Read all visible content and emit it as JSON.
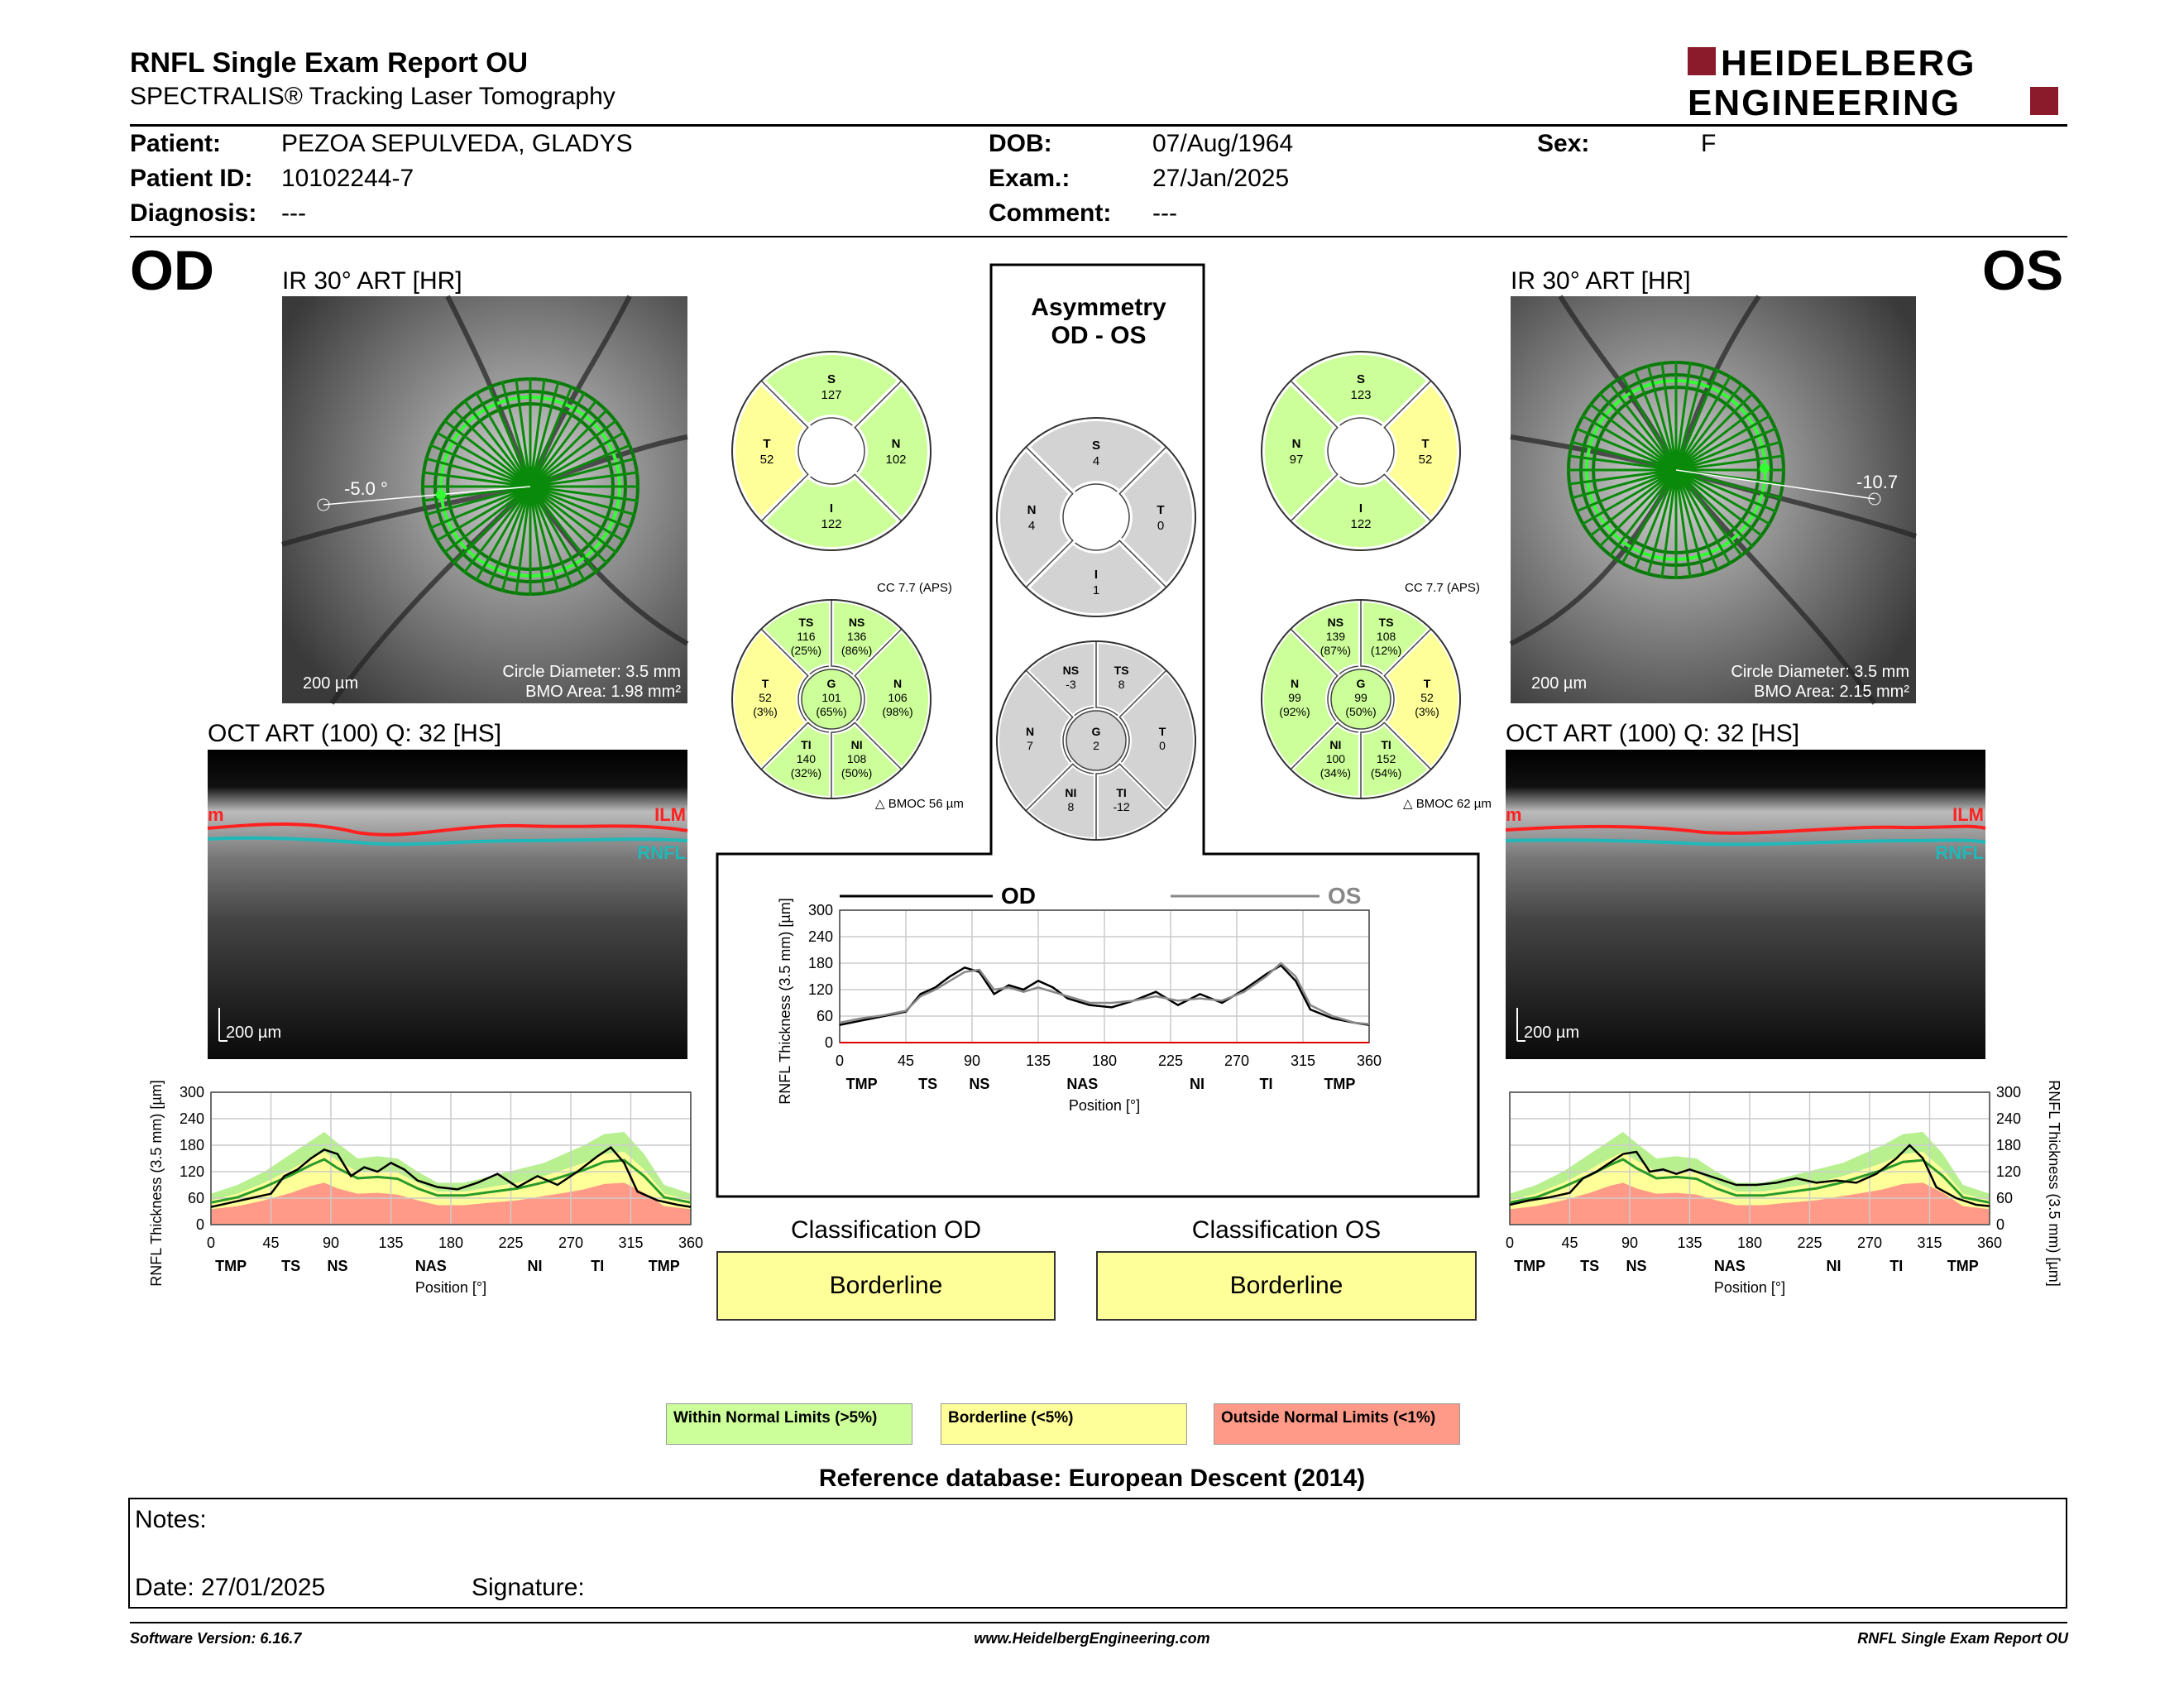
{
  "header": {
    "title": "RNFL Single Exam Report OU",
    "subtitle": "SPECTRALIS® Tracking Laser Tomography",
    "logo_line1": "HEIDELBERG",
    "logo_line2": "ENGINEERING"
  },
  "patient": {
    "patient_label": "Patient:",
    "patient": "PEZOA SEPULVEDA, GLADYS",
    "id_label": "Patient ID:",
    "id": "10102244-7",
    "diagnosis_label": "Diagnosis:",
    "diagnosis": "---",
    "dob_label": "DOB:",
    "dob": "07/Aug/1964",
    "exam_label": "Exam.:",
    "exam": "27/Jan/2025",
    "comment_label": "Comment:",
    "comment": "---",
    "sex_label": "Sex:",
    "sex": "F"
  },
  "od": {
    "eye": "OD",
    "ir_title": "IR 30° ART [HR]",
    "angle": "-5.0 °",
    "scale": "200 µm",
    "circle_diameter": "Circle Diameter: 3.5 mm",
    "bmo_area": "BMO Area: 1.98 mm²",
    "oct_title": "OCT ART (100) Q: 32 [HS]",
    "oct_scale": "200 µm",
    "ilm": "ILM",
    "ilm_left": "m",
    "rnfl": "RNFL",
    "sectors6": {
      "S": "127",
      "T": "52",
      "N": "102",
      "I": "122"
    },
    "sectors6_labels": {
      "S": "S",
      "T": "T",
      "N": "N",
      "I": "I"
    },
    "cc": "CC 7.7 (APS)",
    "bmoc": "BMOC 56 µm",
    "sectors": [
      {
        "lab": "TS",
        "val": "116",
        "pct": "(25%)"
      },
      {
        "lab": "NS",
        "val": "136",
        "pct": "(86%)"
      },
      {
        "lab": "T",
        "val": "52",
        "pct": "(3%)"
      },
      {
        "lab": "G",
        "val": "101",
        "pct": "(65%)"
      },
      {
        "lab": "N",
        "val": "106",
        "pct": "(98%)"
      },
      {
        "lab": "TI",
        "val": "140",
        "pct": "(32%)"
      },
      {
        "lab": "NI",
        "val": "108",
        "pct": "(50%)"
      }
    ]
  },
  "os": {
    "eye": "OS",
    "ir_title": "IR 30° ART [HR]",
    "angle": "-10.7",
    "scale": "200 µm",
    "circle_diameter": "Circle Diameter: 3.5 mm",
    "bmo_area": "BMO Area: 2.15 mm²",
    "oct_title": "OCT ART (100) Q: 32 [HS]",
    "oct_scale": "200 µm",
    "ilm": "ILM",
    "ilm_left": "m",
    "rnfl": "RNFL",
    "sectors6": {
      "S": "123",
      "N": "97",
      "T": "52",
      "I": "122"
    },
    "sectors6_labels": {
      "S": "S",
      "T": "T",
      "N": "N",
      "I": "I"
    },
    "cc": "CC 7.7 (APS)",
    "bmoc": "BMOC 62 µm",
    "sectors": [
      {
        "lab": "NS",
        "val": "139",
        "pct": "(87%)"
      },
      {
        "lab": "TS",
        "val": "108",
        "pct": "(12%)"
      },
      {
        "lab": "N",
        "val": "99",
        "pct": "(92%)"
      },
      {
        "lab": "G",
        "val": "99",
        "pct": "(50%)"
      },
      {
        "lab": "T",
        "val": "52",
        "pct": "(3%)"
      },
      {
        "lab": "NI",
        "val": "100",
        "pct": "(34%)"
      },
      {
        "lab": "TI",
        "val": "152",
        "pct": "(54%)"
      }
    ]
  },
  "asym": {
    "title1": "Asymmetry",
    "title2": "OD - OS",
    "s6": {
      "S": "4",
      "N": "4",
      "T": "0",
      "I": "1"
    },
    "s6_labels": {
      "S": "S",
      "N": "N",
      "T": "T",
      "I": "I"
    },
    "s8": [
      {
        "lab": "NS",
        "val": "-3"
      },
      {
        "lab": "TS",
        "val": "8"
      },
      {
        "lab": "N",
        "val": "7"
      },
      {
        "lab": "G",
        "val": "2"
      },
      {
        "lab": "T",
        "val": "0"
      },
      {
        "lab": "NI",
        "val": "8"
      },
      {
        "lab": "TI",
        "val": "-12"
      }
    ]
  },
  "chart_data": [
    {
      "type": "line",
      "name": "comparison",
      "legend": [
        "OD",
        "OS"
      ],
      "ylabel": "RNFL Thickness (3.5 mm) [µm]",
      "xlabel": "Position [°]",
      "yticks": [
        "0",
        "60",
        "120",
        "180",
        "240",
        "300"
      ],
      "xticks": [
        "0",
        "45",
        "90",
        "135",
        "180",
        "225",
        "270",
        "315",
        "360"
      ],
      "sector_labels": [
        "TMP",
        "TS",
        "NS",
        "NAS",
        "NI",
        "TI",
        "TMP"
      ],
      "ylim": [
        0,
        300
      ],
      "xlim": [
        0,
        360
      ],
      "series": [
        {
          "name": "OD",
          "color": "#000000",
          "x": [
            0,
            15,
            30,
            45,
            55,
            65,
            75,
            85,
            95,
            105,
            115,
            125,
            135,
            145,
            155,
            170,
            185,
            200,
            215,
            230,
            245,
            260,
            275,
            290,
            300,
            310,
            320,
            335,
            350,
            360
          ],
          "y": [
            40,
            50,
            60,
            70,
            110,
            125,
            150,
            170,
            160,
            110,
            130,
            120,
            140,
            125,
            100,
            85,
            80,
            95,
            115,
            85,
            110,
            90,
            120,
            155,
            175,
            140,
            75,
            55,
            45,
            40
          ]
        },
        {
          "name": "OS",
          "color": "#888888",
          "x": [
            0,
            15,
            30,
            45,
            55,
            65,
            75,
            85,
            95,
            105,
            115,
            125,
            135,
            145,
            155,
            170,
            185,
            200,
            215,
            230,
            245,
            260,
            275,
            290,
            300,
            310,
            320,
            335,
            350,
            360
          ],
          "y": [
            45,
            55,
            62,
            72,
            105,
            120,
            140,
            160,
            165,
            120,
            125,
            115,
            125,
            115,
            105,
            90,
            90,
            95,
            105,
            95,
            100,
            95,
            115,
            150,
            180,
            150,
            85,
            60,
            45,
            42
          ]
        }
      ]
    },
    {
      "type": "area",
      "name": "od_normative",
      "ylabel": "RNFL Thickness (3.5 mm) [µm]",
      "xlabel": "Position [°]",
      "yticks": [
        "0",
        "60",
        "120",
        "180",
        "240",
        "300"
      ],
      "xticks": [
        "0",
        "45",
        "90",
        "135",
        "180",
        "225",
        "270",
        "315",
        "360"
      ],
      "sector_labels": [
        "TMP",
        "TS",
        "NS",
        "NAS",
        "NI",
        "TI",
        "TMP"
      ],
      "ylim": [
        0,
        300
      ],
      "xlim": [
        0,
        360
      ]
    },
    {
      "type": "area",
      "name": "os_normative",
      "ylabel": "RNFL Thickness (3.5 mm) [µm]",
      "xlabel": "Position [°]",
      "yticks": [
        "0",
        "60",
        "120",
        "180",
        "240",
        "300"
      ],
      "xticks": [
        "0",
        "45",
        "90",
        "135",
        "180",
        "225",
        "270",
        "315",
        "360"
      ],
      "sector_labels": [
        "TMP",
        "TS",
        "NS",
        "NAS",
        "NI",
        "TI",
        "TMP"
      ],
      "ylim": [
        0,
        300
      ],
      "xlim": [
        0,
        360
      ]
    }
  ],
  "classification": {
    "od_title": "Classification OD",
    "od": "Borderline",
    "os_title": "Classification OS",
    "os": "Borderline"
  },
  "legend": {
    "normal": "Within Normal Limits (>5%)",
    "border": "Borderline (<5%)",
    "outside": "Outside Normal Limits (<1%)",
    "colors": {
      "normal": "#ccff99",
      "border": "#ffff99",
      "outside": "#ff9988"
    }
  },
  "reference": "Reference database: European Descent (2014)",
  "notes": {
    "label": "Notes:",
    "date": "Date: 27/01/2025",
    "signature": "Signature:"
  },
  "footer": {
    "left": "Software Version: 6.16.7",
    "center": "www.HeidelbergEngineering.com",
    "right": "RNFL Single Exam Report OU"
  }
}
